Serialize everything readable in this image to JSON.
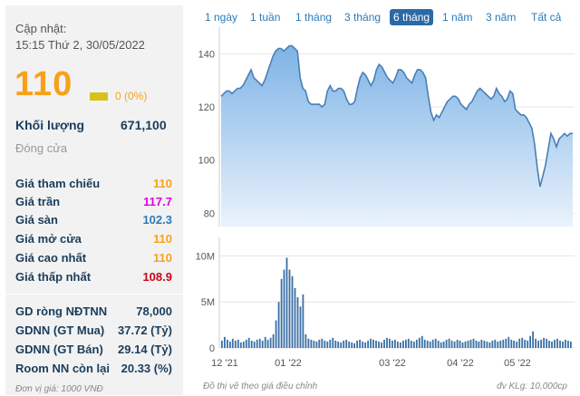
{
  "info": {
    "update_label": "Cập nhật:",
    "update_time": "15:15 Thứ 2, 30/05/2022",
    "price": "110",
    "change": "0 (0%)",
    "volume_label": "Khối lượng",
    "volume_value": "671,100",
    "status": "Đóng cửa",
    "price_rows": [
      {
        "label": "Giá tham chiếu",
        "value": "110",
        "color": "#f7a11a"
      },
      {
        "label": "Giá trần",
        "value": "117.7",
        "color": "#e000e0"
      },
      {
        "label": "Giá sàn",
        "value": "102.3",
        "color": "#2a7ab8"
      },
      {
        "label": "Giá mở cửa",
        "value": "110",
        "color": "#f7a11a"
      },
      {
        "label": "Giá cao nhất",
        "value": "110",
        "color": "#f7a11a"
      },
      {
        "label": "Giá thấp nhất",
        "value": "108.9",
        "color": "#d0021b"
      }
    ],
    "foreign_rows": [
      {
        "label": "GD ròng NĐTNN",
        "value": "78,000"
      },
      {
        "label": "GDNN (GT Mua)",
        "value": "37.72 (Tỷ)"
      },
      {
        "label": "GDNN (GT Bán)",
        "value": "29.14 (Tỷ)"
      },
      {
        "label": "Room NN còn lại",
        "value": "20.33 (%)"
      }
    ],
    "unit_note": "Đơn vị giá: 1000 VNĐ"
  },
  "tabs": [
    {
      "label": "1 ngày",
      "active": false
    },
    {
      "label": "1 tuần",
      "active": false
    },
    {
      "label": "1 tháng",
      "active": false
    },
    {
      "label": "3 tháng",
      "active": false
    },
    {
      "label": "6 tháng",
      "active": true
    },
    {
      "label": "1 năm",
      "active": false
    },
    {
      "label": "3 năm",
      "active": false
    },
    {
      "label": "Tất cả",
      "active": false
    }
  ],
  "footer": {
    "left": "Đồ thị vẽ theo giá điều chỉnh",
    "right": "đv KLg: 10,000cp"
  },
  "colors": {
    "line": "#4a7fb5",
    "area_top": "#7eb3e6",
    "area_bottom": "#eaf3fc",
    "volume_bar": "#3a6fa6",
    "price_accent": "#f7a11a"
  },
  "chart_data": [
    {
      "type": "area",
      "x_tick_labels": [
        "12 '21",
        "01 '22",
        "03 '22",
        "04 '22",
        "05 '22"
      ],
      "y_tick_labels": [
        "80",
        "100",
        "120",
        "140"
      ],
      "ylim": [
        75,
        150
      ],
      "grid": true,
      "values": [
        124,
        125,
        126,
        126,
        125,
        126,
        127,
        127,
        128,
        130,
        132,
        134,
        131,
        130,
        129,
        128,
        130,
        133,
        136,
        139,
        141,
        142,
        142,
        141,
        142,
        143,
        143,
        142,
        141,
        131,
        127,
        126,
        122,
        121,
        121,
        121,
        121,
        120,
        121,
        126,
        128,
        126,
        126,
        127,
        127,
        126,
        123,
        121,
        121,
        122,
        127,
        131,
        133,
        132,
        130,
        128,
        130,
        134,
        136,
        135,
        133,
        131,
        130,
        129,
        131,
        134,
        134,
        133,
        131,
        130,
        129,
        132,
        134,
        134,
        133,
        131,
        124,
        118,
        115,
        117,
        116,
        118,
        120,
        122,
        123,
        124,
        124,
        123,
        121,
        120,
        119,
        121,
        122,
        124,
        126,
        127,
        126,
        125,
        124,
        123,
        124,
        127,
        125,
        124,
        122,
        123,
        126,
        125,
        119,
        118,
        117,
        117,
        116,
        114,
        112,
        106,
        97,
        90,
        94,
        98,
        104,
        110,
        108,
        105,
        108,
        109,
        110,
        109,
        110,
        110
      ]
    },
    {
      "type": "bar",
      "y_tick_labels": [
        "0",
        "5M",
        "10M"
      ],
      "ylim": [
        0,
        12000000
      ],
      "values": [
        800000,
        1200000,
        900000,
        700000,
        1000000,
        800000,
        900000,
        600000,
        700000,
        900000,
        1100000,
        800000,
        700000,
        900000,
        1000000,
        800000,
        1200000,
        900000,
        1100000,
        1500000,
        3000000,
        5000000,
        7500000,
        8500000,
        9800000,
        8500000,
        7800000,
        6500000,
        5500000,
        4500000,
        5800000,
        1500000,
        1000000,
        900000,
        800000,
        700000,
        900000,
        1000000,
        800000,
        700000,
        900000,
        1100000,
        800000,
        700000,
        600000,
        800000,
        900000,
        700000,
        600000,
        500000,
        800000,
        900000,
        700000,
        600000,
        800000,
        1000000,
        900000,
        800000,
        700000,
        600000,
        900000,
        1100000,
        1000000,
        800000,
        900000,
        700000,
        600000,
        800000,
        900000,
        1000000,
        800000,
        700000,
        900000,
        1100000,
        1300000,
        900000,
        800000,
        700000,
        900000,
        1000000,
        800000,
        600000,
        700000,
        900000,
        1000000,
        800000,
        700000,
        900000,
        800000,
        600000,
        700000,
        800000,
        900000,
        1000000,
        800000,
        700000,
        900000,
        800000,
        700000,
        600000,
        800000,
        900000,
        700000,
        800000,
        900000,
        1000000,
        1200000,
        900000,
        800000,
        700000,
        1000000,
        1100000,
        900000,
        800000,
        1300000,
        1800000,
        1000000,
        800000,
        900000,
        1100000,
        1000000,
        800000,
        700000,
        900000,
        1000000,
        800000,
        700000,
        900000,
        800000,
        700000
      ]
    }
  ]
}
